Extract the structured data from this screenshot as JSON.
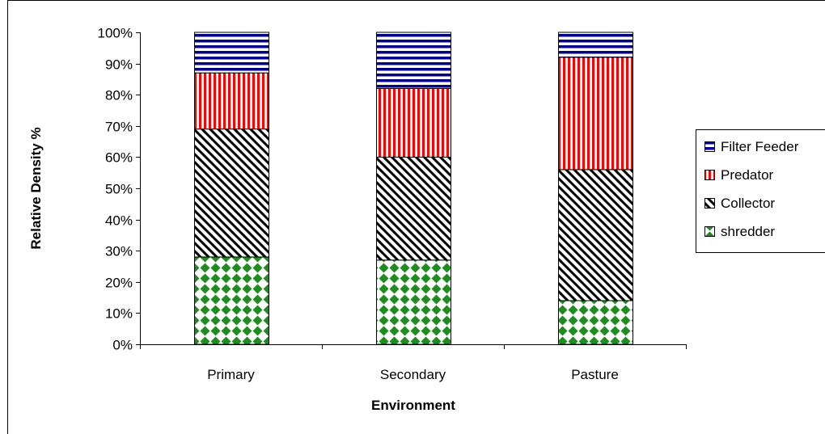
{
  "chart_data": {
    "type": "bar",
    "stacked": true,
    "percent_stacked": true,
    "categories": [
      "Primary",
      "Secondary",
      "Pasture"
    ],
    "series": [
      {
        "name": "shredder",
        "values": [
          28,
          27,
          14
        ],
        "pattern": "diamond",
        "color": "#1e8c1e"
      },
      {
        "name": "Collector",
        "values": [
          41,
          33,
          42
        ],
        "pattern": "diagonal",
        "color": "#000000"
      },
      {
        "name": "Predator",
        "values": [
          18,
          22,
          36
        ],
        "pattern": "vertical",
        "color": "#ff0000"
      },
      {
        "name": "Filter Feeder",
        "values": [
          13,
          18,
          8
        ],
        "pattern": "horizontal",
        "color": "#000080"
      }
    ],
    "xlabel": "Environment",
    "ylabel": "Relative Density %",
    "ylim": [
      0,
      100
    ],
    "yticks": [
      "0%",
      "10%",
      "20%",
      "30%",
      "40%",
      "50%",
      "60%",
      "70%",
      "80%",
      "90%",
      "100%"
    ],
    "legend_order": [
      "Filter Feeder",
      "Predator",
      "Collector",
      "shredder"
    ],
    "legend_position": "right",
    "grid": false
  }
}
